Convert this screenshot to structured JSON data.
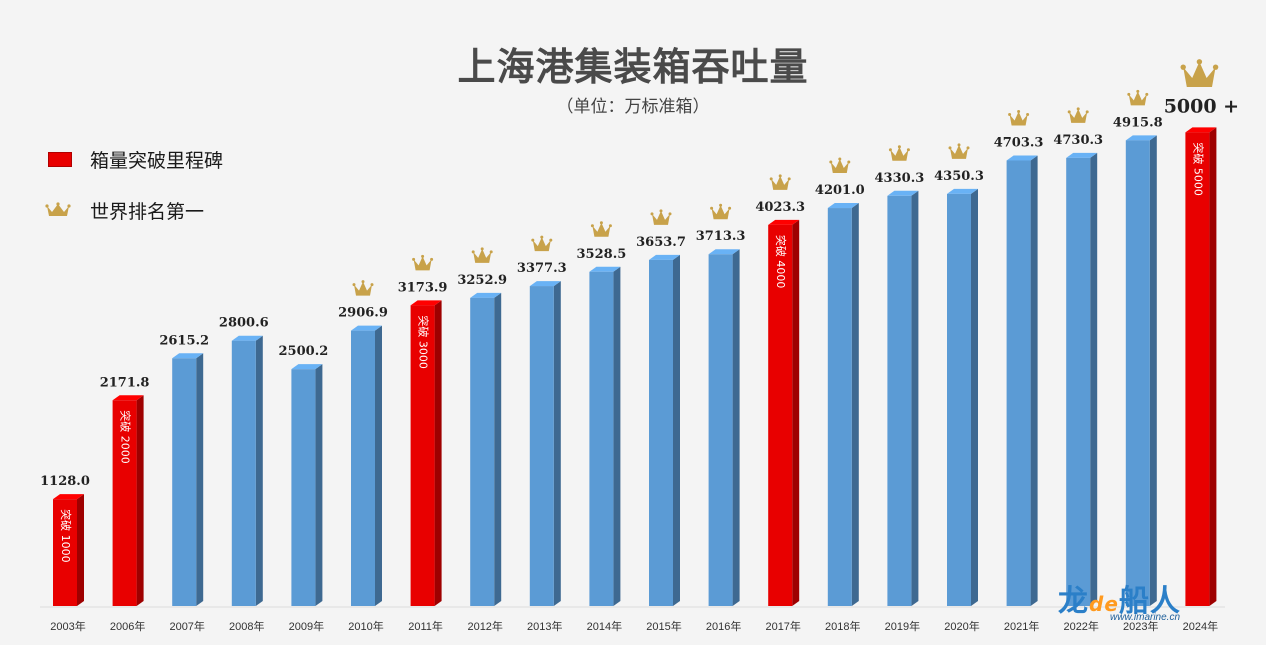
{
  "chart_data": {
    "type": "bar",
    "title": "上海港集装箱吞吐量",
    "subtitle": "（单位：万标准箱）",
    "categories": [
      "2003年",
      "2006年",
      "2007年",
      "2008年",
      "2009年",
      "2010年",
      "2011年",
      "2012年",
      "2013年",
      "2014年",
      "2015年",
      "2016年",
      "2017年",
      "2018年",
      "2019年",
      "2020年",
      "2021年",
      "2022年",
      "2023年",
      "2024年"
    ],
    "values": [
      1128.0,
      2171.8,
      2615.2,
      2800.6,
      2500.2,
      2906.9,
      3173.9,
      3252.9,
      3377.3,
      3528.5,
      3653.7,
      3713.3,
      4023.3,
      4201.0,
      4330.3,
      4350.3,
      4703.3,
      4730.3,
      4915.8,
      5000
    ],
    "value_labels": [
      "1128.0",
      "2171.8",
      "2615.2",
      "2800.6",
      "2500.2",
      "2906.9",
      "3173.9",
      "3252.9",
      "3377.3",
      "3528.5",
      "3653.7",
      "3713.3",
      "4023.3",
      "4201.0",
      "4330.3",
      "4350.3",
      "4703.3",
      "4730.3",
      "4915.8",
      "5000 +"
    ],
    "milestone": [
      true,
      true,
      false,
      false,
      false,
      false,
      true,
      false,
      false,
      false,
      false,
      false,
      true,
      false,
      false,
      false,
      false,
      false,
      false,
      true
    ],
    "milestone_text": [
      "突破 1000",
      "突破 2000",
      "",
      "",
      "",
      "",
      "突破 3000",
      "",
      "",
      "",
      "",
      "",
      "突破 4000",
      "",
      "",
      "",
      "",
      "",
      "",
      "突破 5000"
    ],
    "world_first": [
      false,
      false,
      false,
      false,
      false,
      true,
      true,
      true,
      true,
      true,
      true,
      true,
      true,
      true,
      true,
      true,
      true,
      true,
      true,
      true
    ],
    "ylim": [
      0,
      5500
    ],
    "grid": false,
    "legend_placement": "top-left",
    "legend": [
      {
        "label": "箱量突破里程碑",
        "marker": "red-square"
      },
      {
        "label": "世界排名第一",
        "marker": "crown-icon"
      }
    ],
    "colors": {
      "normal": "#5b9bd5",
      "milestone": "#e80000",
      "crown": "#c8a24a"
    }
  },
  "watermark": {
    "logo_main": "龙",
    "logo_de": "de",
    "logo_rest": "船人",
    "url": "www.imarine.cn"
  }
}
